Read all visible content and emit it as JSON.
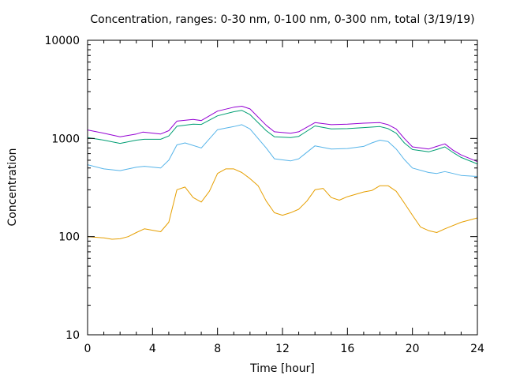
{
  "chart_data": {
    "type": "line",
    "title": "Concentration, ranges: 0-30 nm, 0-100 nm, 0-300 nm, total (3/19/19)",
    "xlabel": "Time [hour]",
    "ylabel": "Concentration",
    "xlim": [
      0,
      24
    ],
    "ylim": [
      10,
      10000
    ],
    "yscale": "log",
    "grid": false,
    "x_ticks": [
      0,
      4,
      8,
      12,
      16,
      20,
      24
    ],
    "x_tick_labels": [
      "0",
      "4",
      "8",
      "12",
      "16",
      "20",
      "24"
    ],
    "y_ticks": [
      10,
      100,
      1000,
      10000
    ],
    "y_tick_labels": [
      "10",
      "100",
      "1000",
      "10000"
    ],
    "series": [
      {
        "color": "#9400d3",
        "points": [
          [
            0,
            1220
          ],
          [
            1,
            1130
          ],
          [
            2,
            1040
          ],
          [
            3,
            1110
          ],
          [
            3.4,
            1160
          ],
          [
            4.5,
            1110
          ],
          [
            5,
            1200
          ],
          [
            5.5,
            1500
          ],
          [
            6.5,
            1560
          ],
          [
            7,
            1520
          ],
          [
            8,
            1900
          ],
          [
            9,
            2080
          ],
          [
            9.5,
            2130
          ],
          [
            10,
            2000
          ],
          [
            11,
            1360
          ],
          [
            11.5,
            1170
          ],
          [
            12.5,
            1130
          ],
          [
            13,
            1170
          ],
          [
            14,
            1450
          ],
          [
            15,
            1380
          ],
          [
            16,
            1400
          ],
          [
            17,
            1430
          ],
          [
            18,
            1450
          ],
          [
            18.5,
            1380
          ],
          [
            19,
            1250
          ],
          [
            19.5,
            1000
          ],
          [
            20,
            820
          ],
          [
            21,
            780
          ],
          [
            21.5,
            830
          ],
          [
            22,
            880
          ],
          [
            22.5,
            760
          ],
          [
            23,
            680
          ],
          [
            24,
            580
          ]
        ]
      },
      {
        "color": "#009e73",
        "points": [
          [
            0,
            1020
          ],
          [
            1,
            960
          ],
          [
            2,
            890
          ],
          [
            3,
            960
          ],
          [
            3.5,
            980
          ],
          [
            4.5,
            980
          ],
          [
            5,
            1060
          ],
          [
            5.5,
            1330
          ],
          [
            6.5,
            1400
          ],
          [
            7,
            1390
          ],
          [
            8,
            1700
          ],
          [
            9,
            1870
          ],
          [
            9.5,
            1930
          ],
          [
            10,
            1750
          ],
          [
            11,
            1200
          ],
          [
            11.5,
            1040
          ],
          [
            12.5,
            1020
          ],
          [
            13,
            1050
          ],
          [
            14,
            1340
          ],
          [
            15,
            1250
          ],
          [
            16,
            1260
          ],
          [
            17,
            1290
          ],
          [
            18,
            1320
          ],
          [
            18.5,
            1260
          ],
          [
            19,
            1130
          ],
          [
            19.5,
            900
          ],
          [
            20,
            770
          ],
          [
            21,
            730
          ],
          [
            21.5,
            770
          ],
          [
            22,
            820
          ],
          [
            22.5,
            720
          ],
          [
            23,
            640
          ],
          [
            24,
            550
          ]
        ]
      },
      {
        "color": "#56b4e9",
        "points": [
          [
            0,
            540
          ],
          [
            1,
            490
          ],
          [
            2,
            470
          ],
          [
            3,
            510
          ],
          [
            3.5,
            520
          ],
          [
            4.5,
            500
          ],
          [
            5,
            600
          ],
          [
            5.5,
            860
          ],
          [
            6,
            900
          ],
          [
            7,
            800
          ],
          [
            8,
            1230
          ],
          [
            9,
            1320
          ],
          [
            9.5,
            1380
          ],
          [
            10,
            1250
          ],
          [
            11,
            800
          ],
          [
            11.5,
            620
          ],
          [
            12.5,
            590
          ],
          [
            13,
            620
          ],
          [
            14,
            840
          ],
          [
            15,
            780
          ],
          [
            16,
            790
          ],
          [
            17,
            830
          ],
          [
            17.5,
            900
          ],
          [
            18,
            960
          ],
          [
            18.5,
            930
          ],
          [
            19,
            780
          ],
          [
            19.5,
            610
          ],
          [
            20,
            500
          ],
          [
            21,
            450
          ],
          [
            21.5,
            440
          ],
          [
            22,
            460
          ],
          [
            22.5,
            440
          ],
          [
            23,
            420
          ],
          [
            24,
            410
          ]
        ]
      },
      {
        "color": "#e69f00",
        "points": [
          [
            0,
            100
          ],
          [
            1,
            97
          ],
          [
            1.5,
            94
          ],
          [
            2,
            95
          ],
          [
            2.5,
            100
          ],
          [
            3,
            110
          ],
          [
            3.5,
            120
          ],
          [
            4.5,
            112
          ],
          [
            5,
            140
          ],
          [
            5.5,
            300
          ],
          [
            6,
            320
          ],
          [
            6.5,
            250
          ],
          [
            7,
            225
          ],
          [
            7.5,
            290
          ],
          [
            8,
            440
          ],
          [
            8.5,
            490
          ],
          [
            9,
            490
          ],
          [
            9.5,
            450
          ],
          [
            10,
            390
          ],
          [
            10.5,
            330
          ],
          [
            11,
            230
          ],
          [
            11.5,
            175
          ],
          [
            12,
            165
          ],
          [
            12.5,
            175
          ],
          [
            13,
            190
          ],
          [
            13.5,
            230
          ],
          [
            14,
            300
          ],
          [
            14.5,
            310
          ],
          [
            15,
            250
          ],
          [
            15.5,
            235
          ],
          [
            16,
            255
          ],
          [
            17,
            285
          ],
          [
            17.5,
            295
          ],
          [
            18,
            330
          ],
          [
            18.5,
            330
          ],
          [
            19,
            290
          ],
          [
            19.5,
            220
          ],
          [
            20,
            165
          ],
          [
            20.5,
            125
          ],
          [
            21,
            115
          ],
          [
            21.5,
            110
          ],
          [
            22,
            120
          ],
          [
            23,
            140
          ],
          [
            24,
            155
          ]
        ]
      }
    ]
  }
}
